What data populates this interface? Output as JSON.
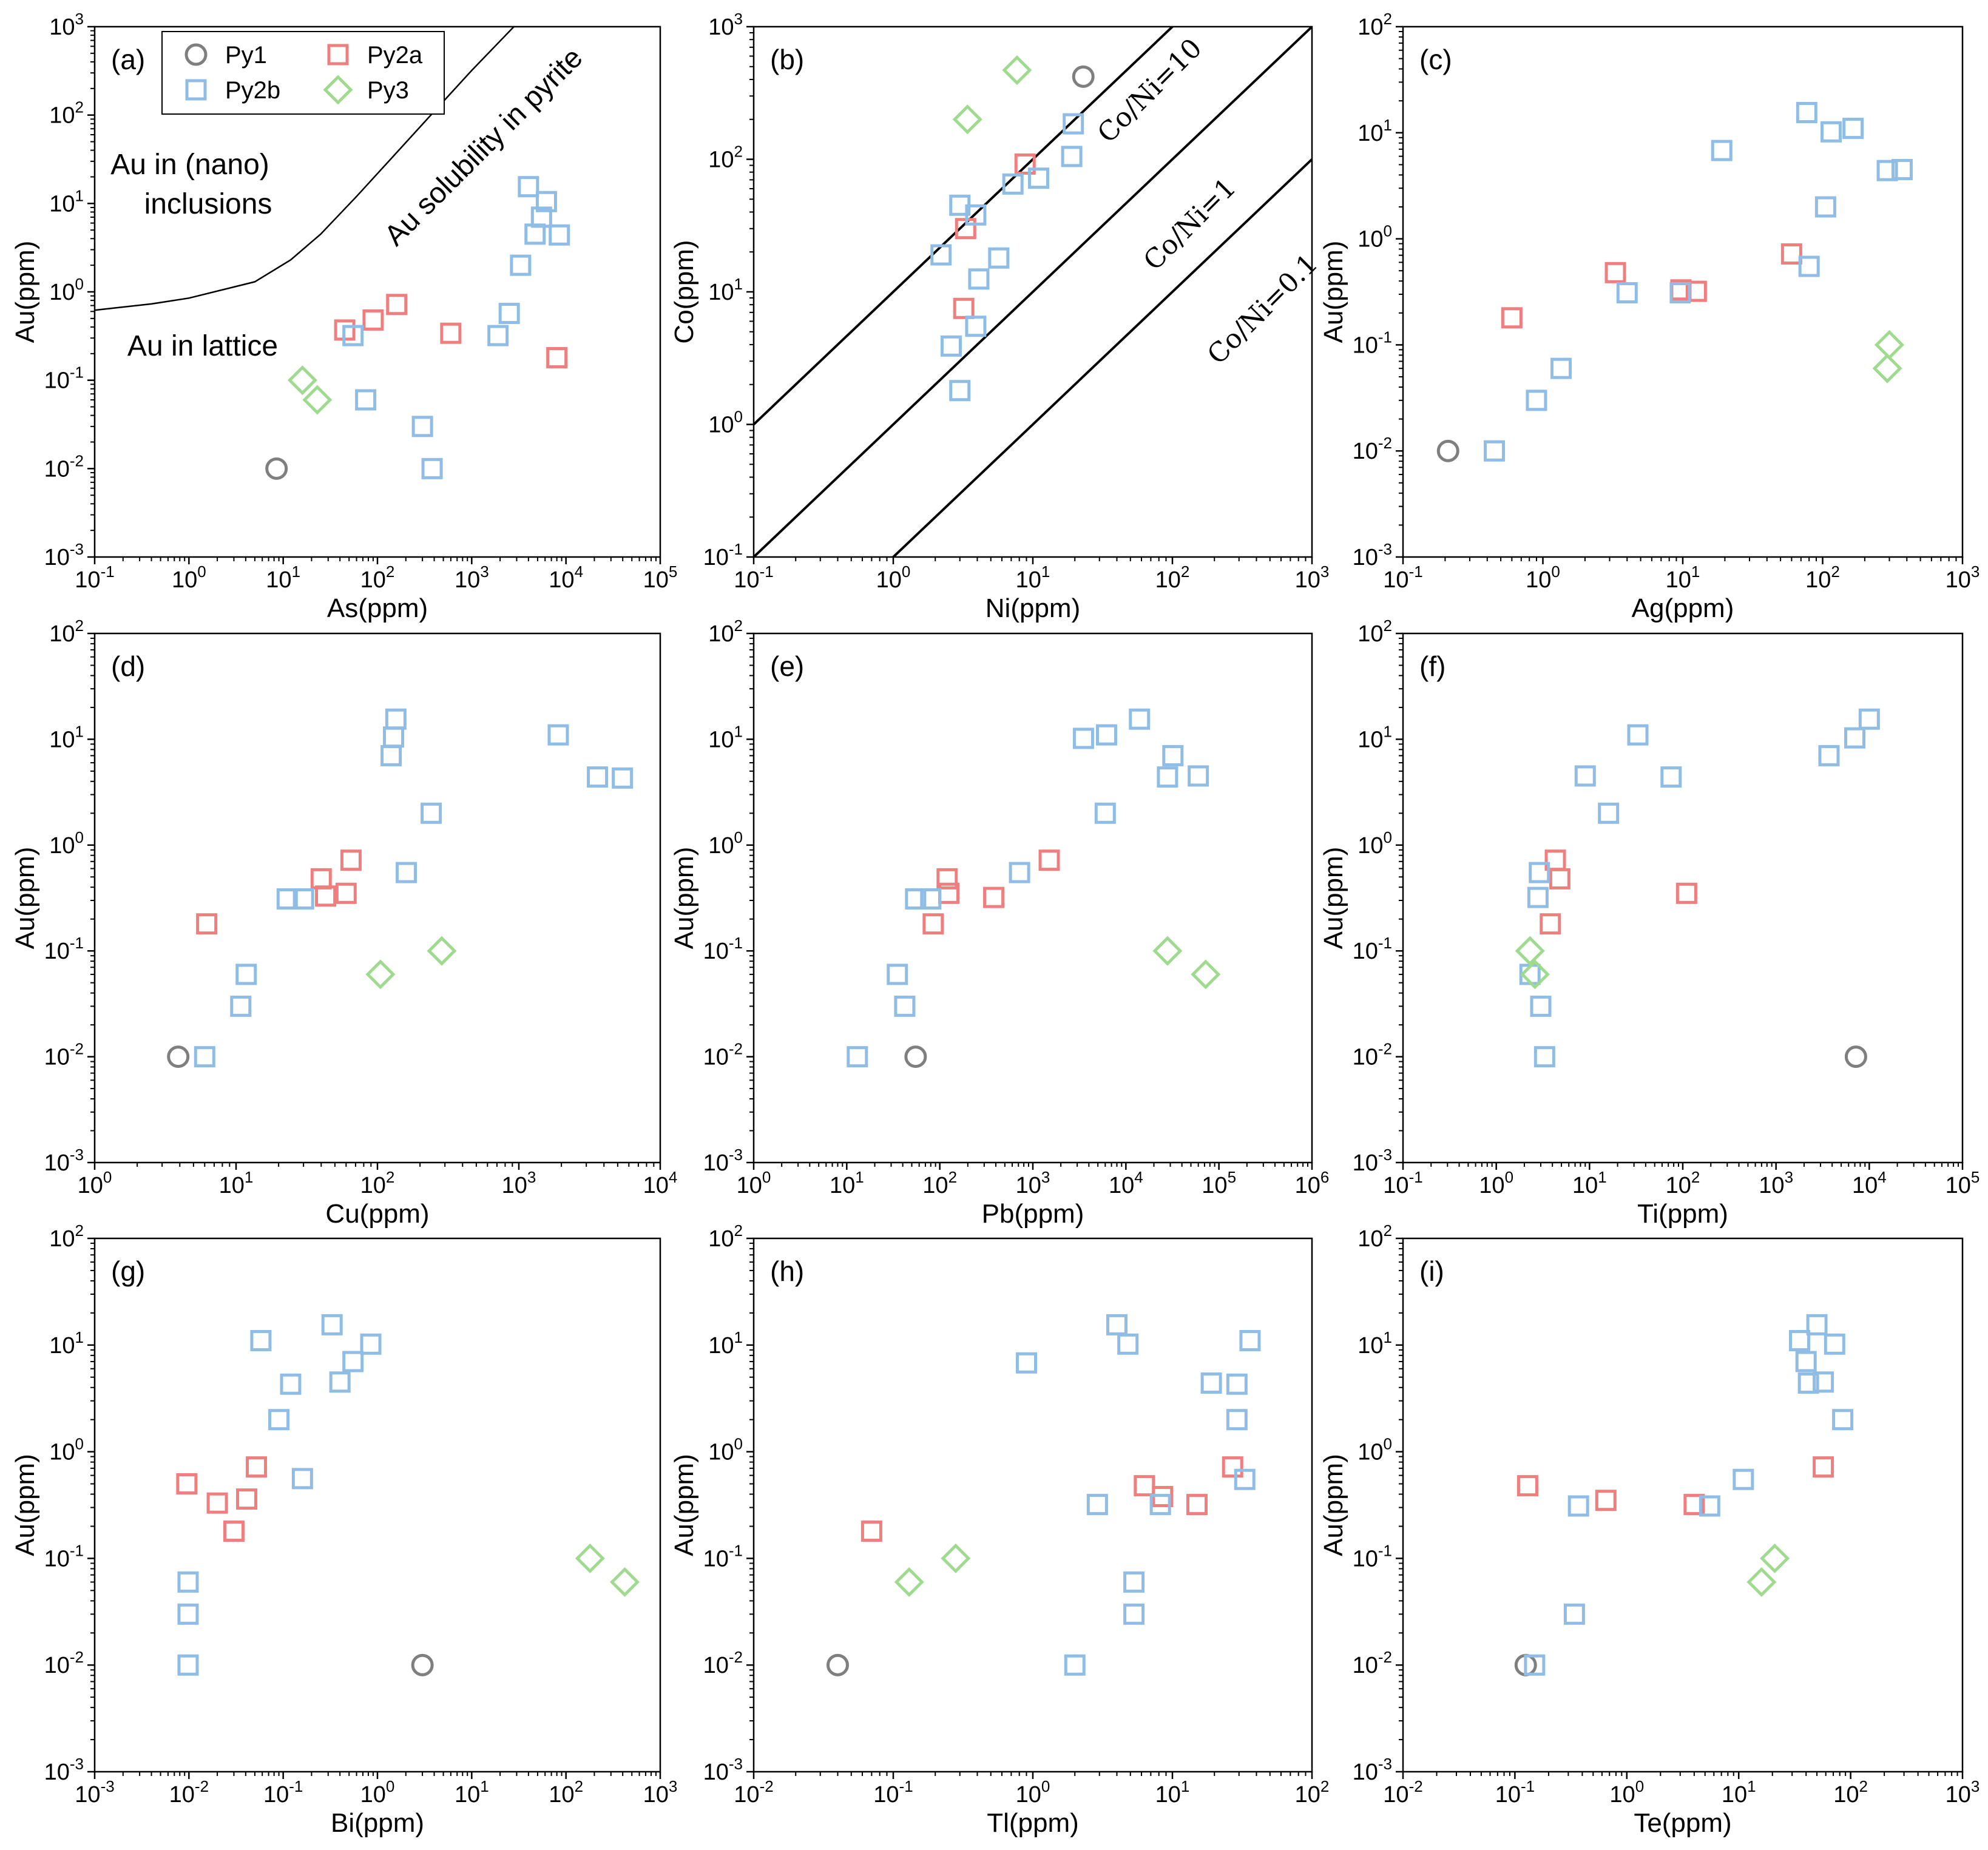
{
  "series_styles": {
    "Py1": {
      "marker": "circle",
      "color": "#7f7f7f"
    },
    "Py2a": {
      "marker": "square",
      "color": "#ef7f7f"
    },
    "Py2b": {
      "marker": "square",
      "color": "#8fbde5"
    },
    "Py3": {
      "marker": "diamond",
      "color": "#9fdb8f"
    }
  },
  "legend": {
    "entries": [
      {
        "name": "Py1",
        "label": "Py1"
      },
      {
        "name": "Py2a",
        "label": "Py2a"
      },
      {
        "name": "Py2b",
        "label": "Py2b"
      },
      {
        "name": "Py3",
        "label": "Py3"
      }
    ]
  },
  "chart_data": [
    {
      "id": "a",
      "panel_label": "(a)",
      "type": "scatter",
      "xlabel": "As(ppm)",
      "ylabel": "Au(ppm)",
      "x_scale": "log",
      "y_scale": "log",
      "xlim_exp": [
        -1,
        5
      ],
      "ylim_exp": [
        -3,
        3
      ],
      "series": [
        {
          "name": "Py1",
          "points": [
            [
              8.5,
              0.01
            ]
          ]
        },
        {
          "name": "Py2a",
          "points": [
            [
              45,
              0.37
            ],
            [
              90,
              0.48
            ],
            [
              160,
              0.72
            ],
            [
              600,
              0.34
            ],
            [
              8000,
              0.18
            ]
          ]
        },
        {
          "name": "Py2b",
          "points": [
            [
              55,
              0.32
            ],
            [
              75,
              0.06
            ],
            [
              300,
              0.03
            ],
            [
              380,
              0.01
            ],
            [
              1900,
              0.32
            ],
            [
              2500,
              0.57
            ],
            [
              3300,
              2.0
            ],
            [
              4000,
              15.5
            ],
            [
              4700,
              4.5
            ],
            [
              5500,
              7.0
            ],
            [
              6200,
              10.5
            ],
            [
              8500,
              4.4
            ]
          ]
        },
        {
          "name": "Py3",
          "points": [
            [
              16,
              0.1
            ],
            [
              23,
              0.06
            ]
          ]
        }
      ],
      "solubility_curve": [
        [
          0.1,
          0.62
        ],
        [
          0.4,
          0.73
        ],
        [
          1,
          0.85
        ],
        [
          5,
          1.3
        ],
        [
          12,
          2.3
        ],
        [
          25,
          4.5
        ],
        [
          60,
          12
        ],
        [
          150,
          35
        ],
        [
          400,
          110
        ],
        [
          1000,
          320
        ],
        [
          2800,
          1000
        ]
      ],
      "annotations": {
        "curve_label": "Au solubility in pyrite",
        "upper_label_line1": "Au in (nano)",
        "upper_label_line2": "inclusions",
        "lower_label": "Au in lattice"
      }
    },
    {
      "id": "b",
      "panel_label": "(b)",
      "type": "scatter",
      "xlabel": "Ni(ppm)",
      "ylabel": "Co(ppm)",
      "x_scale": "log",
      "y_scale": "log",
      "xlim_exp": [
        -1,
        3
      ],
      "ylim_exp": [
        -1,
        3
      ],
      "series": [
        {
          "name": "Py1",
          "points": [
            [
              23,
              420
            ]
          ]
        },
        {
          "name": "Py2a",
          "points": [
            [
              3.2,
              7.5
            ],
            [
              3.3,
              30
            ],
            [
              8.8,
              92
            ]
          ]
        },
        {
          "name": "Py2b",
          "points": [
            [
              2.2,
              19
            ],
            [
              2.6,
              3.9
            ],
            [
              3.0,
              45
            ],
            [
              3.0,
              1.8
            ],
            [
              3.9,
              38
            ],
            [
              3.9,
              5.5
            ],
            [
              4.1,
              12.5
            ],
            [
              5.7,
              18
            ],
            [
              7.2,
              65
            ],
            [
              11,
              72
            ],
            [
              19,
              105
            ],
            [
              19.5,
              185
            ]
          ]
        },
        {
          "name": "Py3",
          "points": [
            [
              3.4,
              200
            ],
            [
              7.7,
              470
            ]
          ]
        }
      ],
      "ratio_lines": [
        {
          "ratio": 10,
          "label": "Co/Ni=10"
        },
        {
          "ratio": 1,
          "label": "Co/Ni=1"
        },
        {
          "ratio": 0.1,
          "label": "Co/Ni=0.1"
        }
      ]
    },
    {
      "id": "c",
      "panel_label": "(c)",
      "type": "scatter",
      "xlabel": "Ag(ppm)",
      "ylabel": "Au(ppm)",
      "x_scale": "log",
      "y_scale": "log",
      "xlim_exp": [
        -1,
        3
      ],
      "ylim_exp": [
        -3,
        2
      ],
      "series": [
        {
          "name": "Py1",
          "points": [
            [
              0.21,
              0.01
            ]
          ]
        },
        {
          "name": "Py2a",
          "points": [
            [
              0.6,
              0.18
            ],
            [
              3.3,
              0.48
            ],
            [
              9.7,
              0.33
            ],
            [
              12.5,
              0.32
            ],
            [
              60,
              0.72
            ]
          ]
        },
        {
          "name": "Py2b",
          "points": [
            [
              0.45,
              0.01
            ],
            [
              0.9,
              0.03
            ],
            [
              1.35,
              0.06
            ],
            [
              4.0,
              0.31
            ],
            [
              9.6,
              0.31
            ],
            [
              19,
              6.8
            ],
            [
              77,
              15.5
            ],
            [
              80,
              0.55
            ],
            [
              105,
              2.0
            ],
            [
              115,
              10.2
            ],
            [
              165,
              11
            ],
            [
              290,
              4.4
            ],
            [
              370,
              4.5
            ]
          ]
        },
        {
          "name": "Py3",
          "points": [
            [
              290,
              0.06
            ],
            [
              300,
              0.1
            ]
          ]
        }
      ]
    },
    {
      "id": "d",
      "panel_label": "(d)",
      "type": "scatter",
      "xlabel": "Cu(ppm)",
      "ylabel": "Au(ppm)",
      "x_scale": "log",
      "y_scale": "log",
      "xlim_exp": [
        0,
        4
      ],
      "ylim_exp": [
        -3,
        2
      ],
      "series": [
        {
          "name": "Py1",
          "points": [
            [
              3.9,
              0.01
            ]
          ]
        },
        {
          "name": "Py2a",
          "points": [
            [
              6.2,
              0.18
            ],
            [
              40,
              0.48
            ],
            [
              43,
              0.33
            ],
            [
              60,
              0.35
            ],
            [
              65,
              0.72
            ]
          ]
        },
        {
          "name": "Py2b",
          "points": [
            [
              6.0,
              0.01
            ],
            [
              10.8,
              0.03
            ],
            [
              11.8,
              0.06
            ],
            [
              23,
              0.31
            ],
            [
              30,
              0.31
            ],
            [
              125,
              7.0
            ],
            [
              130,
              10.5
            ],
            [
              135,
              15.5
            ],
            [
              160,
              0.55
            ],
            [
              240,
              2.0
            ],
            [
              1900,
              11
            ],
            [
              3600,
              4.4
            ],
            [
              5400,
              4.3
            ]
          ]
        },
        {
          "name": "Py3",
          "points": [
            [
              105,
              0.06
            ],
            [
              285,
              0.1
            ]
          ]
        }
      ]
    },
    {
      "id": "e",
      "panel_label": "(e)",
      "type": "scatter",
      "xlabel": "Pb(ppm)",
      "ylabel": "Au(ppm)",
      "x_scale": "log",
      "y_scale": "log",
      "xlim_exp": [
        0,
        6
      ],
      "ylim_exp": [
        -3,
        2
      ],
      "series": [
        {
          "name": "Py1",
          "points": [
            [
              55,
              0.01
            ]
          ]
        },
        {
          "name": "Py2a",
          "points": [
            [
              85,
              0.18
            ],
            [
              120,
              0.48
            ],
            [
              125,
              0.35
            ],
            [
              380,
              0.32
            ],
            [
              1500,
              0.72
            ]
          ]
        },
        {
          "name": "Py2b",
          "points": [
            [
              13,
              0.01
            ],
            [
              35,
              0.06
            ],
            [
              42,
              0.03
            ],
            [
              55,
              0.31
            ],
            [
              80,
              0.31
            ],
            [
              720,
              0.55
            ],
            [
              3500,
              10.2
            ],
            [
              6000,
              2.0
            ],
            [
              6200,
              11
            ],
            [
              14000,
              15.5
            ],
            [
              28000,
              4.4
            ],
            [
              32000,
              7.0
            ],
            [
              60000,
              4.5
            ]
          ]
        },
        {
          "name": "Py3",
          "points": [
            [
              28000,
              0.1
            ],
            [
              72000,
              0.06
            ]
          ]
        }
      ]
    },
    {
      "id": "f",
      "panel_label": "(f)",
      "type": "scatter",
      "xlabel": "Ti(ppm)",
      "ylabel": "Au(ppm)",
      "x_scale": "log",
      "y_scale": "log",
      "xlim_exp": [
        -1,
        5
      ],
      "ylim_exp": [
        -3,
        2
      ],
      "series": [
        {
          "name": "Py1",
          "points": [
            [
              7200,
              0.01
            ]
          ]
        },
        {
          "name": "Py2a",
          "points": [
            [
              3.8,
              0.18
            ],
            [
              4.3,
              0.72
            ],
            [
              4.8,
              0.48
            ],
            [
              110,
              0.35
            ]
          ]
        },
        {
          "name": "Py2b",
          "points": [
            [
              2.3,
              0.06
            ],
            [
              2.8,
              0.32
            ],
            [
              2.9,
              0.55
            ],
            [
              3.0,
              0.03
            ],
            [
              3.3,
              0.01
            ],
            [
              9,
              4.5
            ],
            [
              16,
              2.0
            ],
            [
              33,
              11
            ],
            [
              75,
              4.4
            ],
            [
              3700,
              7.0
            ],
            [
              7000,
              10.3
            ],
            [
              10000,
              15.5
            ]
          ]
        },
        {
          "name": "Py3",
          "points": [
            [
              2.3,
              0.1
            ],
            [
              2.6,
              0.06
            ]
          ]
        }
      ]
    },
    {
      "id": "g",
      "panel_label": "(g)",
      "type": "scatter",
      "xlabel": "Bi(ppm)",
      "ylabel": "Au(ppm)",
      "x_scale": "log",
      "y_scale": "log",
      "xlim_exp": [
        -3,
        3
      ],
      "ylim_exp": [
        -3,
        2
      ],
      "series": [
        {
          "name": "Py1",
          "points": [
            [
              3.0,
              0.01
            ]
          ]
        },
        {
          "name": "Py2a",
          "points": [
            [
              0.0095,
              0.5
            ],
            [
              0.02,
              0.33
            ],
            [
              0.03,
              0.18
            ],
            [
              0.041,
              0.36
            ],
            [
              0.052,
              0.72
            ]
          ]
        },
        {
          "name": "Py2b",
          "points": [
            [
              0.0098,
              0.06
            ],
            [
              0.0098,
              0.03
            ],
            [
              0.0098,
              0.01
            ],
            [
              0.058,
              11
            ],
            [
              0.09,
              2.0
            ],
            [
              0.12,
              4.3
            ],
            [
              0.16,
              0.56
            ],
            [
              0.33,
              15.5
            ],
            [
              0.4,
              4.5
            ],
            [
              0.55,
              7.0
            ],
            [
              0.85,
              10.2
            ]
          ]
        },
        {
          "name": "Py3",
          "points": [
            [
              180,
              0.1
            ],
            [
              420,
              0.06
            ]
          ]
        }
      ]
    },
    {
      "id": "h",
      "panel_label": "(h)",
      "type": "scatter",
      "xlabel": "Tl(ppm)",
      "ylabel": "Au(ppm)",
      "x_scale": "log",
      "y_scale": "log",
      "xlim_exp": [
        -2,
        2
      ],
      "ylim_exp": [
        -3,
        2
      ],
      "series": [
        {
          "name": "Py1",
          "points": [
            [
              0.04,
              0.01
            ]
          ]
        },
        {
          "name": "Py2a",
          "points": [
            [
              0.07,
              0.18
            ],
            [
              6.3,
              0.48
            ],
            [
              8.5,
              0.38
            ],
            [
              15,
              0.32
            ],
            [
              27,
              0.72
            ]
          ]
        },
        {
          "name": "Py2b",
          "points": [
            [
              0.9,
              6.8
            ],
            [
              2.0,
              0.01
            ],
            [
              2.9,
              0.32
            ],
            [
              4.0,
              15.5
            ],
            [
              4.8,
              10.2
            ],
            [
              5.3,
              0.06
            ],
            [
              5.3,
              0.03
            ],
            [
              8.2,
              0.32
            ],
            [
              19,
              4.4
            ],
            [
              29,
              4.3
            ],
            [
              29,
              2.0
            ],
            [
              33,
              0.55
            ],
            [
              36,
              11
            ]
          ]
        },
        {
          "name": "Py3",
          "points": [
            [
              0.13,
              0.06
            ],
            [
              0.28,
              0.1
            ]
          ]
        }
      ]
    },
    {
      "id": "i",
      "panel_label": "(i)",
      "type": "scatter",
      "xlabel": "Te(ppm)",
      "ylabel": "Au(ppm)",
      "x_scale": "log",
      "y_scale": "log",
      "xlim_exp": [
        -2,
        3
      ],
      "ylim_exp": [
        -3,
        2
      ],
      "series": [
        {
          "name": "Py1",
          "points": [
            [
              0.125,
              0.01
            ]
          ]
        },
        {
          "name": "Py2a",
          "points": [
            [
              0.13,
              0.48
            ],
            [
              0.65,
              0.35
            ],
            [
              4.0,
              0.32
            ],
            [
              57,
              0.72
            ]
          ]
        },
        {
          "name": "Py2b",
          "points": [
            [
              0.15,
              0.01
            ],
            [
              0.34,
              0.03
            ],
            [
              0.37,
              0.31
            ],
            [
              5.5,
              0.31
            ],
            [
              11,
              0.55
            ],
            [
              35,
              11
            ],
            [
              40,
              7.0
            ],
            [
              42,
              4.4
            ],
            [
              50,
              15.5
            ],
            [
              57,
              4.5
            ],
            [
              72,
              10.2
            ],
            [
              85,
              2.0
            ]
          ]
        },
        {
          "name": "Py3",
          "points": [
            [
              16,
              0.06
            ],
            [
              21,
              0.1
            ]
          ]
        }
      ]
    }
  ]
}
